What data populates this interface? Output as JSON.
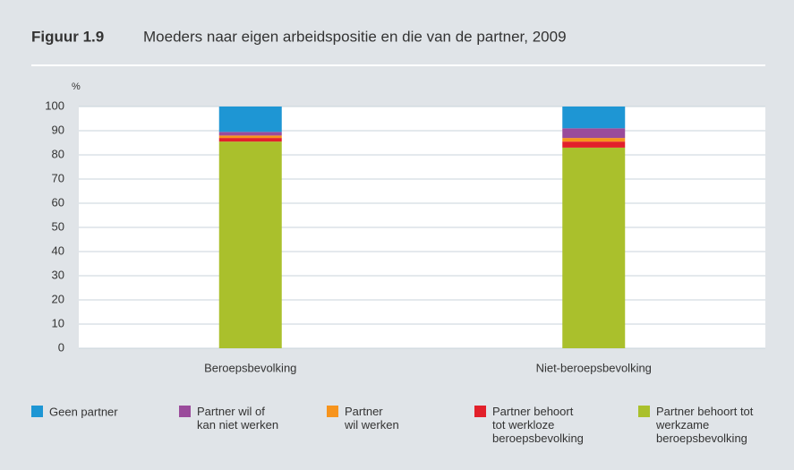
{
  "chart_data": {
    "type": "stacked-bar",
    "figure_label": "Figuur 1.9",
    "title": "Moeders naar eigen arbeidspositie en die van de partner, 2009",
    "y_unit": "%",
    "categories": [
      "Beroepsbevolking",
      "Niet-beroepsbevolking"
    ],
    "series": [
      {
        "name": "Geen partner",
        "color": "#1e96d4",
        "values": [
          10.5,
          9
        ]
      },
      {
        "name": "Partner wil of\nkan niet werken",
        "color": "#9a4b9b",
        "values": [
          1.5,
          4
        ]
      },
      {
        "name": "Partner\nwil werken",
        "color": "#f7941d",
        "values": [
          1,
          1.5
        ]
      },
      {
        "name": "Partner behoort\ntot werkloze\nberoepsbevolking",
        "color": "#e2202a",
        "values": [
          1.5,
          2.5
        ]
      },
      {
        "name": "Partner behoort tot\nwerkzame\nberoepsbevolking",
        "color": "#aac02c",
        "values": [
          85.5,
          83
        ]
      }
    ],
    "ylim": [
      0,
      100
    ],
    "yticks": [
      0,
      10,
      20,
      30,
      40,
      50,
      60,
      70,
      80,
      90,
      100
    ],
    "grid": true
  }
}
